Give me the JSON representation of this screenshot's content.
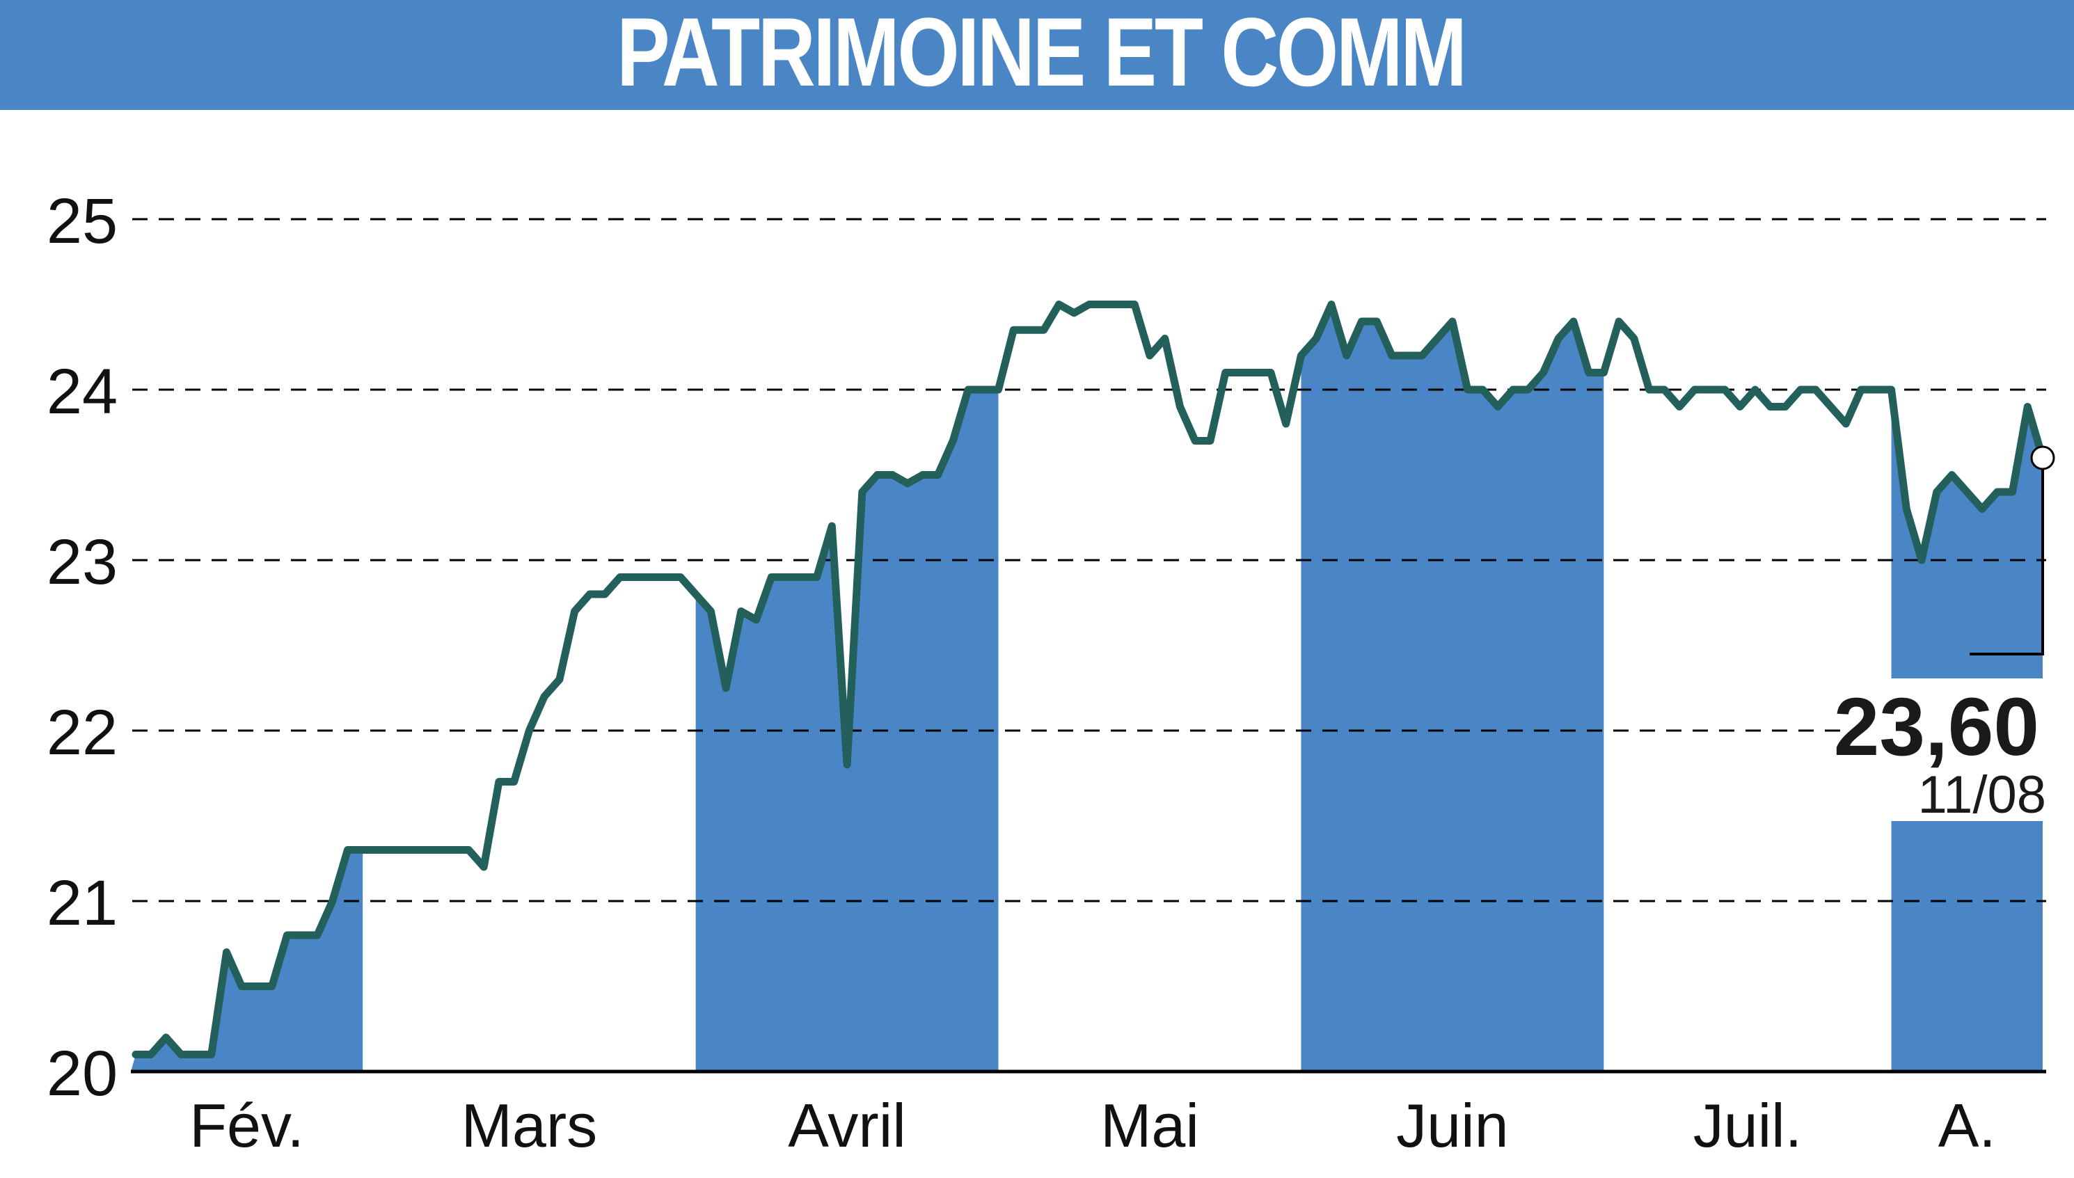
{
  "chart_data": {
    "type": "line",
    "title": "PATRIMOINE ET COMM",
    "ylim": [
      20,
      25
    ],
    "yticks": [
      "20",
      "21",
      "22",
      "23",
      "24",
      "25"
    ],
    "grid": true,
    "months": [
      "Fév.",
      "Mars",
      "Avril",
      "Mai",
      "Juin",
      "Juil.",
      "A."
    ],
    "shaded_months": [
      0,
      2,
      4,
      6
    ],
    "series": [
      {
        "values": [
          20.1,
          20.1,
          20.2,
          20.1,
          20.1,
          20.1,
          20.7,
          20.5,
          20.5,
          20.5,
          20.8,
          20.8,
          20.8,
          21.0,
          21.3,
          21.3,
          21.3,
          21.3,
          21.3,
          21.3,
          21.3,
          21.3,
          21.3,
          21.2,
          21.7,
          21.7,
          22.0,
          22.2,
          22.3,
          22.7,
          22.8,
          22.8,
          22.9,
          22.9,
          22.9,
          22.9,
          22.9,
          22.8,
          22.7,
          22.25,
          22.7,
          22.65,
          22.9,
          22.9,
          22.9,
          22.9,
          23.2,
          21.8,
          23.4,
          23.5,
          23.5,
          23.45,
          23.5,
          23.5,
          23.7,
          24.0,
          24.0,
          24.0,
          24.35,
          24.35,
          24.35,
          24.5,
          24.45,
          24.5,
          24.5,
          24.5,
          24.5,
          24.2,
          24.3,
          23.9,
          23.7,
          23.7,
          24.1,
          24.1,
          24.1,
          24.1,
          23.8,
          24.2,
          24.3,
          24.5,
          24.2,
          24.4,
          24.4,
          24.2,
          24.2,
          24.2,
          24.3,
          24.4,
          24.0,
          24.0,
          23.9,
          24.0,
          24.0,
          24.1,
          24.3,
          24.4,
          24.1,
          24.1,
          24.4,
          24.3,
          24.0,
          24.0,
          23.9,
          24.0,
          24.0,
          24.0,
          23.9,
          24.0,
          23.9,
          23.9,
          24.0,
          24.0,
          23.9,
          23.8,
          24.0,
          24.0,
          24.0,
          23.3,
          23.0,
          23.4,
          23.5,
          23.4,
          23.3,
          23.4,
          23.4,
          23.9,
          23.6
        ]
      }
    ],
    "last": {
      "value": "23,60",
      "date": "11/08"
    },
    "colors": {
      "line": "#23605b",
      "band": "#4a86c5",
      "grid": "#000000",
      "marker_fill": "#ffffff"
    }
  }
}
